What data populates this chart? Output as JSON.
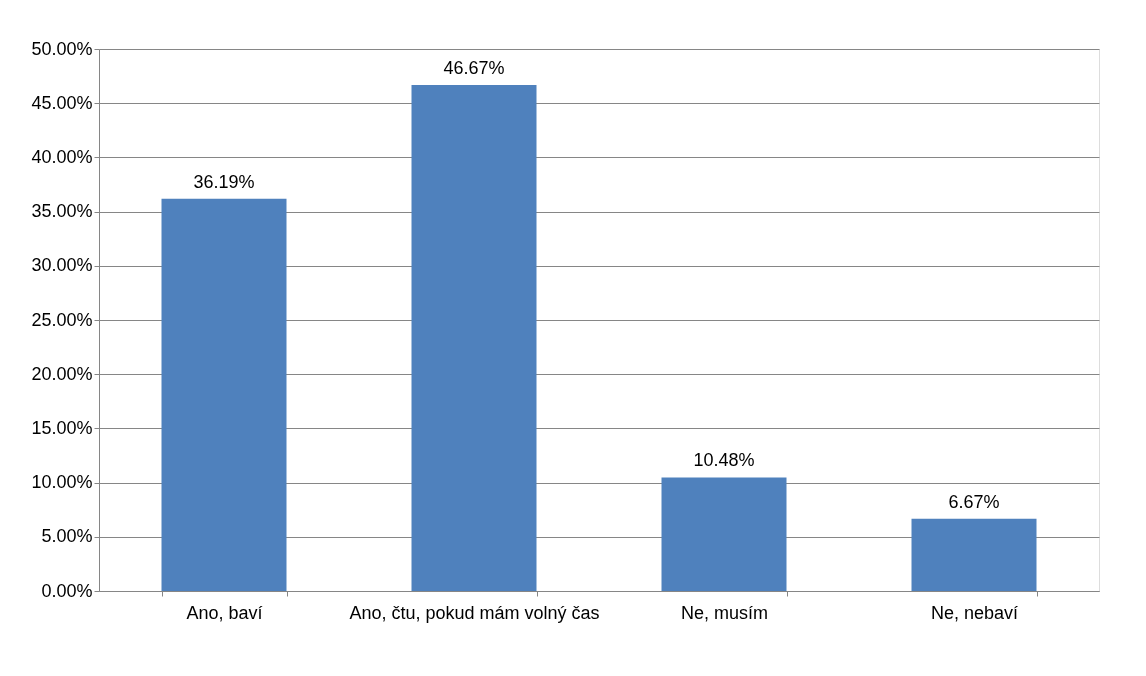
{
  "chart_data": {
    "type": "bar",
    "categories": [
      "Ano, baví",
      "Ano, čtu, pokud mám volný čas",
      "Ne, musím",
      "Ne, nebaví"
    ],
    "values": [
      36.19,
      46.67,
      10.48,
      6.67
    ],
    "value_labels": [
      "36.19%",
      "46.67%",
      "10.48%",
      "6.67%"
    ],
    "color": "#4f81bd",
    "ylim": [
      0,
      50
    ],
    "yticks": [
      {
        "value": 0,
        "label": "0.00%"
      },
      {
        "value": 5,
        "label": "5.00%"
      },
      {
        "value": 10,
        "label": "10.00%"
      },
      {
        "value": 15,
        "label": "15.00%"
      },
      {
        "value": 20,
        "label": "20.00%"
      },
      {
        "value": 25,
        "label": "25.00%"
      },
      {
        "value": 30,
        "label": "30.00%"
      },
      {
        "value": 35,
        "label": "35.00%"
      },
      {
        "value": 40,
        "label": "40.00%"
      },
      {
        "value": 45,
        "label": "45.00%"
      },
      {
        "value": 50,
        "label": "50.00%"
      }
    ],
    "grid": "y"
  }
}
